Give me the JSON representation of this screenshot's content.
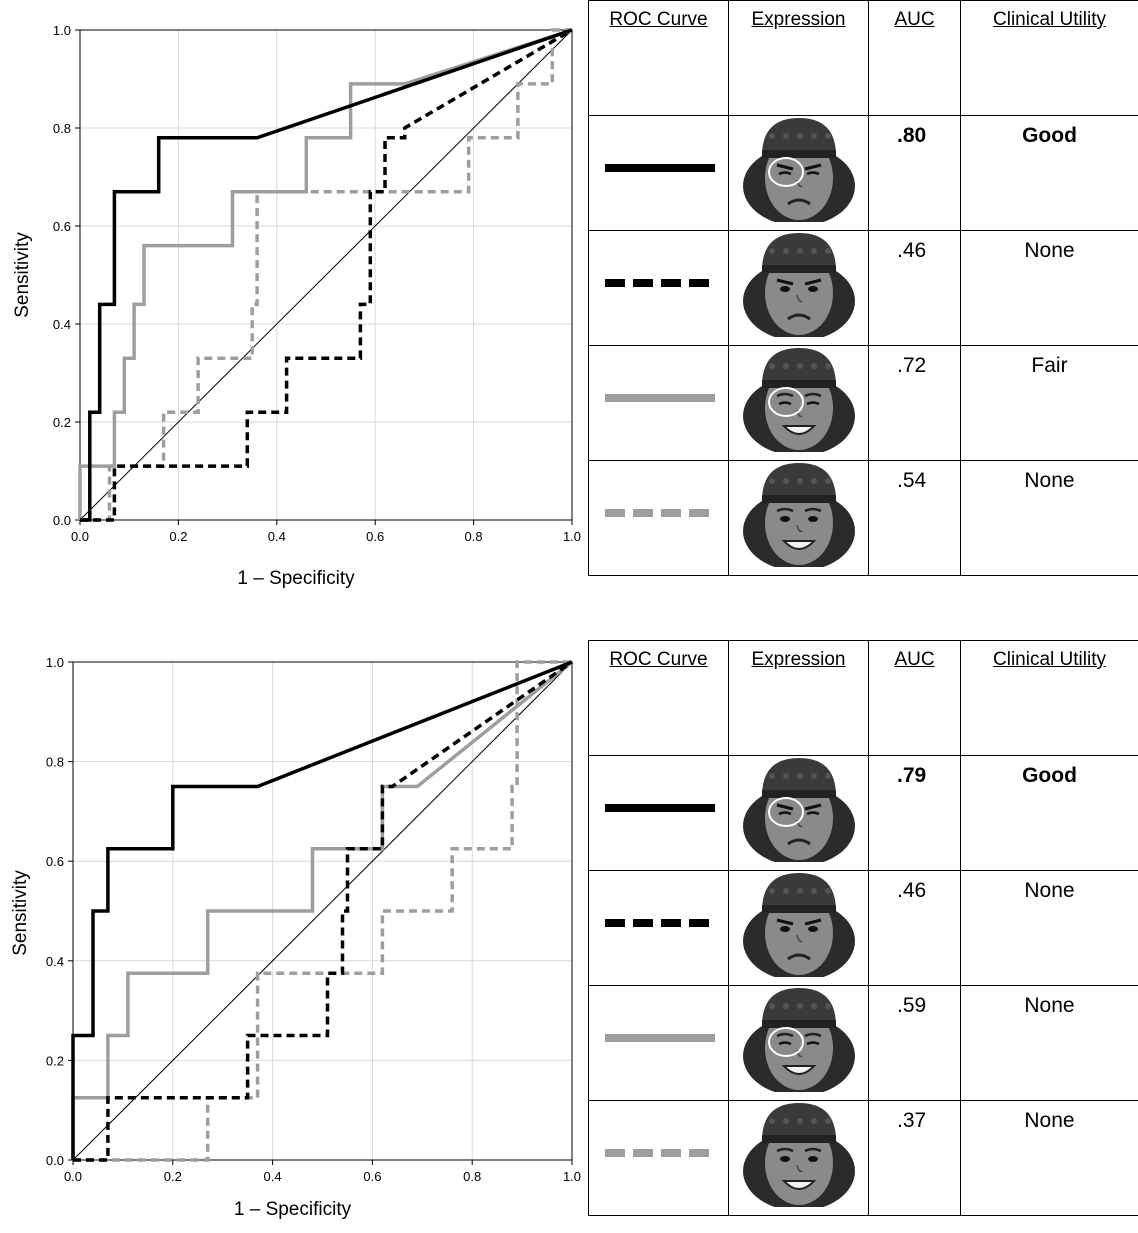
{
  "colors": {
    "black": "#000000",
    "gray": "#9e9e9e",
    "grid": "#d9d9d9"
  },
  "table_headers": {
    "curve": "ROC Curve",
    "expression": "Expression",
    "auc": "AUC",
    "utility": "Clinical Utility"
  },
  "panels": [
    {
      "rows": [
        {
          "line": "solid",
          "color": "black",
          "face": "frown-wince",
          "circle": true,
          "auc": ".80",
          "utility": "Good",
          "bold": true
        },
        {
          "line": "dashed",
          "color": "black",
          "face": "frown",
          "circle": false,
          "auc": ".46",
          "utility": "None",
          "bold": false
        },
        {
          "line": "solid",
          "color": "gray",
          "face": "smile-squint",
          "circle": true,
          "auc": ".72",
          "utility": "Fair",
          "bold": false
        },
        {
          "line": "dashed",
          "color": "gray",
          "face": "smile",
          "circle": false,
          "auc": ".54",
          "utility": "None",
          "bold": false
        }
      ]
    },
    {
      "rows": [
        {
          "line": "solid",
          "color": "black",
          "face": "frown-wince",
          "circle": true,
          "auc": ".79",
          "utility": "Good",
          "bold": true
        },
        {
          "line": "dashed",
          "color": "black",
          "face": "frown",
          "circle": false,
          "auc": ".46",
          "utility": "None",
          "bold": false
        },
        {
          "line": "solid",
          "color": "gray",
          "face": "smile-squint",
          "circle": true,
          "auc": ".59",
          "utility": "None",
          "bold": false
        },
        {
          "line": "dashed",
          "color": "gray",
          "face": "smile",
          "circle": false,
          "auc": ".37",
          "utility": "None",
          "bold": false
        }
      ]
    }
  ],
  "chart_data": [
    {
      "type": "line",
      "xlabel": "1 – Specificity",
      "ylabel": "Sensitivity",
      "xlim": [
        0,
        1
      ],
      "ylim": [
        0,
        1
      ],
      "xticks": [
        "0.0",
        "0.2",
        "0.4",
        "0.6",
        "0.8",
        "1.0"
      ],
      "yticks": [
        "0.0",
        "0.2",
        "0.4",
        "0.6",
        "0.8",
        "1.0"
      ],
      "grid": true,
      "reference_line": [
        [
          0,
          0
        ],
        [
          1,
          1
        ]
      ],
      "series": [
        {
          "color": "black",
          "dash": false,
          "points": [
            [
              0,
              0
            ],
            [
              0.02,
              0
            ],
            [
              0.02,
              0.22
            ],
            [
              0.04,
              0.22
            ],
            [
              0.04,
              0.44
            ],
            [
              0.07,
              0.44
            ],
            [
              0.07,
              0.67
            ],
            [
              0.16,
              0.67
            ],
            [
              0.16,
              0.78
            ],
            [
              0.36,
              0.78
            ],
            [
              1,
              1
            ]
          ]
        },
        {
          "color": "black",
          "dash": true,
          "points": [
            [
              0,
              0
            ],
            [
              0.07,
              0
            ],
            [
              0.07,
              0.11
            ],
            [
              0.34,
              0.11
            ],
            [
              0.34,
              0.22
            ],
            [
              0.42,
              0.22
            ],
            [
              0.42,
              0.33
            ],
            [
              0.57,
              0.33
            ],
            [
              0.57,
              0.44
            ],
            [
              0.59,
              0.44
            ],
            [
              0.59,
              0.67
            ],
            [
              0.62,
              0.67
            ],
            [
              0.62,
              0.78
            ],
            [
              0.66,
              0.78
            ],
            [
              0.66,
              0.8
            ],
            [
              1,
              1
            ]
          ]
        },
        {
          "color": "gray",
          "dash": false,
          "points": [
            [
              0,
              0
            ],
            [
              0,
              0.11
            ],
            [
              0.07,
              0.11
            ],
            [
              0.07,
              0.22
            ],
            [
              0.09,
              0.22
            ],
            [
              0.09,
              0.33
            ],
            [
              0.11,
              0.33
            ],
            [
              0.11,
              0.44
            ],
            [
              0.13,
              0.44
            ],
            [
              0.13,
              0.56
            ],
            [
              0.31,
              0.56
            ],
            [
              0.31,
              0.67
            ],
            [
              0.46,
              0.67
            ],
            [
              0.46,
              0.78
            ],
            [
              0.55,
              0.78
            ],
            [
              0.55,
              0.89
            ],
            [
              0.66,
              0.89
            ],
            [
              1,
              1
            ]
          ]
        },
        {
          "color": "gray",
          "dash": true,
          "points": [
            [
              0,
              0
            ],
            [
              0.06,
              0
            ],
            [
              0.06,
              0.11
            ],
            [
              0.17,
              0.11
            ],
            [
              0.17,
              0.22
            ],
            [
              0.24,
              0.22
            ],
            [
              0.24,
              0.33
            ],
            [
              0.35,
              0.33
            ],
            [
              0.35,
              0.44
            ],
            [
              0.36,
              0.44
            ],
            [
              0.36,
              0.67
            ],
            [
              0.79,
              0.67
            ],
            [
              0.79,
              0.78
            ],
            [
              0.89,
              0.78
            ],
            [
              0.89,
              0.89
            ],
            [
              0.96,
              0.89
            ],
            [
              0.96,
              1
            ],
            [
              1,
              1
            ]
          ]
        }
      ]
    },
    {
      "type": "line",
      "xlabel": "1 – Specificity",
      "ylabel": "Sensitivity",
      "xlim": [
        0,
        1
      ],
      "ylim": [
        0,
        1
      ],
      "xticks": [
        "0.0",
        "0.2",
        "0.4",
        "0.6",
        "0.8",
        "1.0"
      ],
      "yticks": [
        "0.0",
        "0.2",
        "0.4",
        "0.6",
        "0.8",
        "1.0"
      ],
      "grid": true,
      "reference_line": [
        [
          0,
          0
        ],
        [
          1,
          1
        ]
      ],
      "series": [
        {
          "color": "black",
          "dash": false,
          "points": [
            [
              0,
              0
            ],
            [
              0,
              0.25
            ],
            [
              0.04,
              0.25
            ],
            [
              0.04,
              0.5
            ],
            [
              0.07,
              0.5
            ],
            [
              0.07,
              0.625
            ],
            [
              0.2,
              0.625
            ],
            [
              0.2,
              0.75
            ],
            [
              0.37,
              0.75
            ],
            [
              1,
              1
            ]
          ]
        },
        {
          "color": "black",
          "dash": true,
          "points": [
            [
              0,
              0
            ],
            [
              0.07,
              0
            ],
            [
              0.07,
              0.125
            ],
            [
              0.35,
              0.125
            ],
            [
              0.35,
              0.25
            ],
            [
              0.51,
              0.25
            ],
            [
              0.51,
              0.375
            ],
            [
              0.54,
              0.375
            ],
            [
              0.54,
              0.5
            ],
            [
              0.55,
              0.5
            ],
            [
              0.55,
              0.625
            ],
            [
              0.62,
              0.625
            ],
            [
              0.62,
              0.75
            ],
            [
              0.64,
              0.75
            ],
            [
              1,
              1
            ]
          ]
        },
        {
          "color": "gray",
          "dash": false,
          "points": [
            [
              0,
              0
            ],
            [
              0,
              0.125
            ],
            [
              0.07,
              0.125
            ],
            [
              0.07,
              0.25
            ],
            [
              0.11,
              0.25
            ],
            [
              0.11,
              0.375
            ],
            [
              0.27,
              0.375
            ],
            [
              0.27,
              0.5
            ],
            [
              0.48,
              0.5
            ],
            [
              0.48,
              0.625
            ],
            [
              0.62,
              0.625
            ],
            [
              0.62,
              0.75
            ],
            [
              0.69,
              0.75
            ],
            [
              1,
              1
            ]
          ]
        },
        {
          "color": "gray",
          "dash": true,
          "points": [
            [
              0,
              0
            ],
            [
              0.27,
              0
            ],
            [
              0.27,
              0.125
            ],
            [
              0.37,
              0.125
            ],
            [
              0.37,
              0.375
            ],
            [
              0.62,
              0.375
            ],
            [
              0.62,
              0.5
            ],
            [
              0.76,
              0.5
            ],
            [
              0.76,
              0.625
            ],
            [
              0.88,
              0.625
            ],
            [
              0.88,
              0.75
            ],
            [
              0.89,
              0.75
            ],
            [
              0.89,
              1
            ],
            [
              1,
              1
            ]
          ]
        }
      ]
    }
  ]
}
